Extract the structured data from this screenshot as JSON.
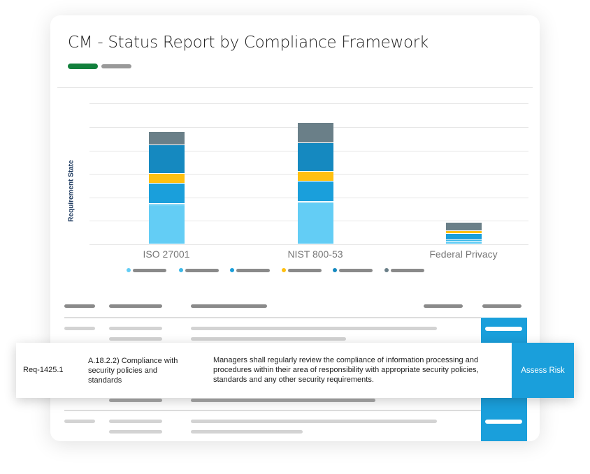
{
  "title": "CM - Status Report by Compliance Framework",
  "colors": {
    "accent_green": "#12803c",
    "accent_blue": "#1a9fdb"
  },
  "chart_data": {
    "type": "bar",
    "stacked": true,
    "title": "",
    "xlabel": "",
    "ylabel": "Requirement State",
    "categories": [
      "ISO 27001",
      "NIST 800-53",
      "Federal Privacy"
    ],
    "ylim": [
      0,
      6
    ],
    "grid": true,
    "legend": "bottom",
    "series": [
      {
        "color": "#63cdf5",
        "values": [
          1.67,
          1.76,
          0.12
        ]
      },
      {
        "color": "#3db9e8",
        "values": [
          0.06,
          0.06,
          0.06
        ]
      },
      {
        "color": "#1a9fdb",
        "values": [
          0.86,
          0.86,
          0.27
        ]
      },
      {
        "color": "#ffc010",
        "values": [
          0.42,
          0.42,
          0.12
        ]
      },
      {
        "color": "#1589c0",
        "values": [
          1.22,
          1.22,
          0.0
        ]
      },
      {
        "color": "#6a7f88",
        "values": [
          0.57,
          0.86,
          0.36
        ]
      }
    ]
  },
  "highlight_row": {
    "id": "Req-1425.1",
    "control": "A.18.2.2) Compliance with security policies and standards",
    "description": "Managers shall regularly review the compliance of information processing and procedures within their area of responsibility with appropriate security policies, standards and any other security requirements.",
    "action": "Assess Risk"
  }
}
